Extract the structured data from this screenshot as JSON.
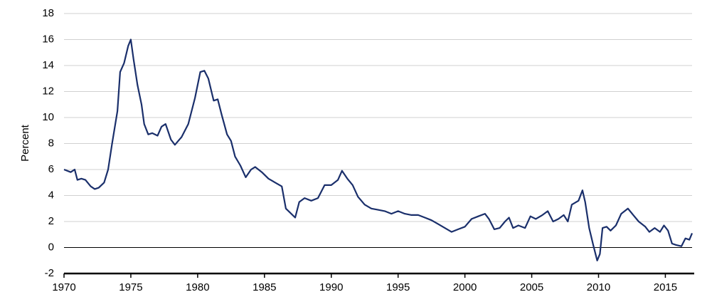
{
  "chart_data": {
    "type": "line",
    "y_label": "Percent",
    "color": "#1a2f6b",
    "xlim": [
      1970,
      2017
    ],
    "xticks": [
      1970,
      1975,
      1980,
      1985,
      1990,
      1995,
      2000,
      2005,
      2010,
      2015
    ],
    "ylim": [
      -2,
      18
    ],
    "yticks": [
      -2,
      0,
      2,
      4,
      6,
      8,
      10,
      12,
      14,
      16,
      18
    ],
    "grid": true,
    "x": [
      1970.0,
      1970.5,
      1970.8,
      1971.0,
      1971.3,
      1971.6,
      1972.0,
      1972.3,
      1972.6,
      1973.0,
      1973.3,
      1973.6,
      1974.0,
      1974.2,
      1974.5,
      1974.8,
      1975.0,
      1975.2,
      1975.5,
      1975.8,
      1976.0,
      1976.3,
      1976.6,
      1977.0,
      1977.3,
      1977.6,
      1978.0,
      1978.3,
      1978.8,
      1979.3,
      1979.8,
      1980.2,
      1980.5,
      1980.8,
      1981.2,
      1981.5,
      1981.8,
      1982.2,
      1982.5,
      1982.8,
      1983.2,
      1983.6,
      1984.0,
      1984.3,
      1984.8,
      1985.3,
      1985.8,
      1986.3,
      1986.6,
      1986.9,
      1987.3,
      1987.6,
      1988.0,
      1988.5,
      1989.0,
      1989.5,
      1990.0,
      1990.5,
      1990.8,
      1991.2,
      1991.6,
      1992.0,
      1992.5,
      1993.0,
      1993.5,
      1994.0,
      1994.5,
      1995.0,
      1995.5,
      1996.0,
      1996.5,
      1997.0,
      1997.5,
      1998.0,
      1998.5,
      1999.0,
      1999.5,
      2000.0,
      2000.5,
      2001.0,
      2001.5,
      2001.8,
      2002.2,
      2002.6,
      2003.0,
      2003.3,
      2003.6,
      2004.0,
      2004.5,
      2004.9,
      2005.3,
      2005.8,
      2006.2,
      2006.6,
      2007.0,
      2007.4,
      2007.7,
      2008.0,
      2008.5,
      2008.8,
      2009.0,
      2009.3,
      2009.6,
      2009.9,
      2010.1,
      2010.3,
      2010.6,
      2010.9,
      2011.3,
      2011.7,
      2012.2,
      2012.6,
      2013.0,
      2013.5,
      2013.8,
      2014.2,
      2014.6,
      2014.9,
      2015.2,
      2015.5,
      2015.8,
      2016.2,
      2016.5,
      2016.8,
      2017.0
    ],
    "values": [
      6.0,
      5.8,
      6.0,
      5.2,
      5.3,
      5.2,
      4.7,
      4.5,
      4.6,
      5.0,
      6.0,
      8.0,
      10.5,
      13.5,
      14.2,
      15.5,
      16.0,
      14.5,
      12.5,
      11.0,
      9.5,
      8.7,
      8.8,
      8.6,
      9.3,
      9.5,
      8.3,
      7.9,
      8.5,
      9.5,
      11.5,
      13.5,
      13.6,
      13.0,
      11.3,
      11.4,
      10.2,
      8.7,
      8.2,
      7.0,
      6.3,
      5.4,
      6.0,
      6.2,
      5.8,
      5.3,
      5.0,
      4.7,
      3.0,
      2.7,
      2.3,
      3.5,
      3.8,
      3.6,
      3.8,
      4.8,
      4.8,
      5.2,
      5.9,
      5.3,
      4.8,
      3.9,
      3.3,
      3.0,
      2.9,
      2.8,
      2.6,
      2.8,
      2.6,
      2.5,
      2.5,
      2.3,
      2.1,
      1.8,
      1.5,
      1.2,
      1.4,
      1.6,
      2.2,
      2.4,
      2.6,
      2.2,
      1.4,
      1.5,
      2.0,
      2.3,
      1.5,
      1.7,
      1.5,
      2.4,
      2.2,
      2.5,
      2.8,
      2.0,
      2.2,
      2.5,
      2.0,
      3.3,
      3.6,
      4.4,
      3.5,
      1.5,
      0.2,
      -1.0,
      -0.5,
      1.5,
      1.6,
      1.3,
      1.7,
      2.6,
      3.0,
      2.5,
      2.0,
      1.6,
      1.2,
      1.5,
      1.2,
      1.7,
      1.3,
      0.3,
      0.2,
      0.1,
      0.7,
      0.6,
      1.1
    ]
  }
}
